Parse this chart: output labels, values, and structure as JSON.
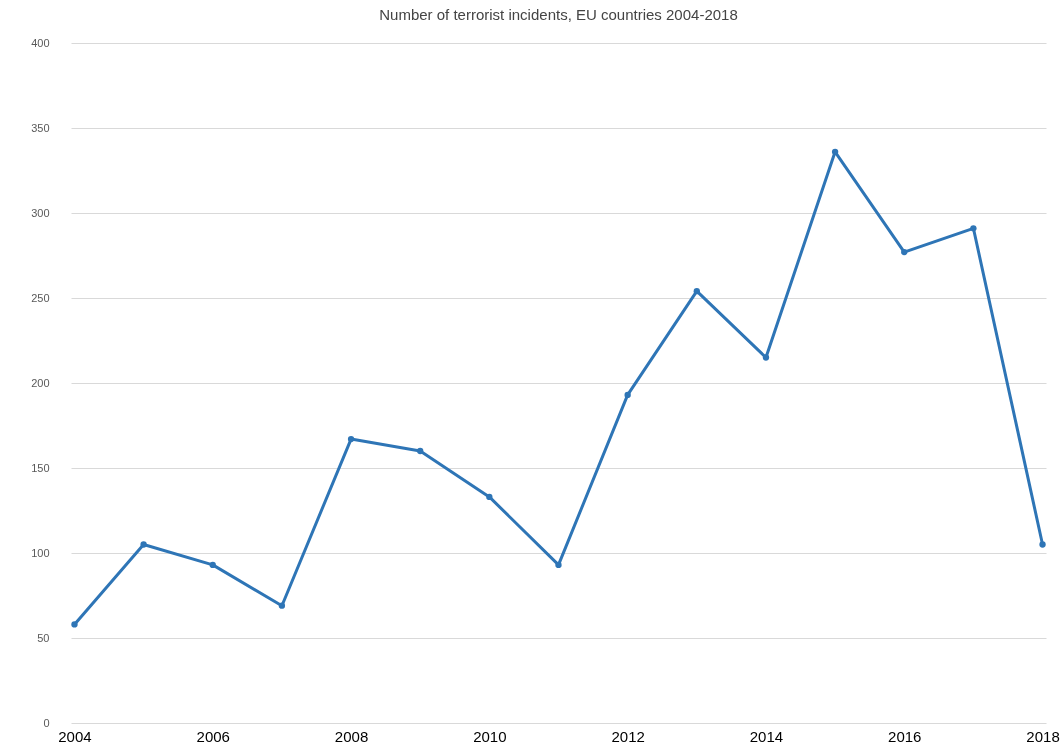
{
  "chart_data": {
    "type": "line",
    "title": "Number of terrorist incidents, EU countries 2004-2018",
    "categories": [
      "2004",
      null,
      "2006",
      null,
      "2008",
      null,
      "2010",
      null,
      "2012",
      null,
      "2014",
      null,
      "2016",
      null,
      "2018"
    ],
    "series": [
      {
        "color": "#2e75b6",
        "values": [
          58,
          105,
          93,
          69,
          167,
          160,
          133,
          93,
          193,
          254,
          215,
          336,
          277,
          291,
          105
        ]
      }
    ],
    "ylim": [
      0,
      400
    ],
    "yticks": [
      0,
      50,
      100,
      150,
      200,
      250,
      300,
      350,
      400
    ],
    "grid": "y",
    "marker": "circle",
    "legend": false
  }
}
